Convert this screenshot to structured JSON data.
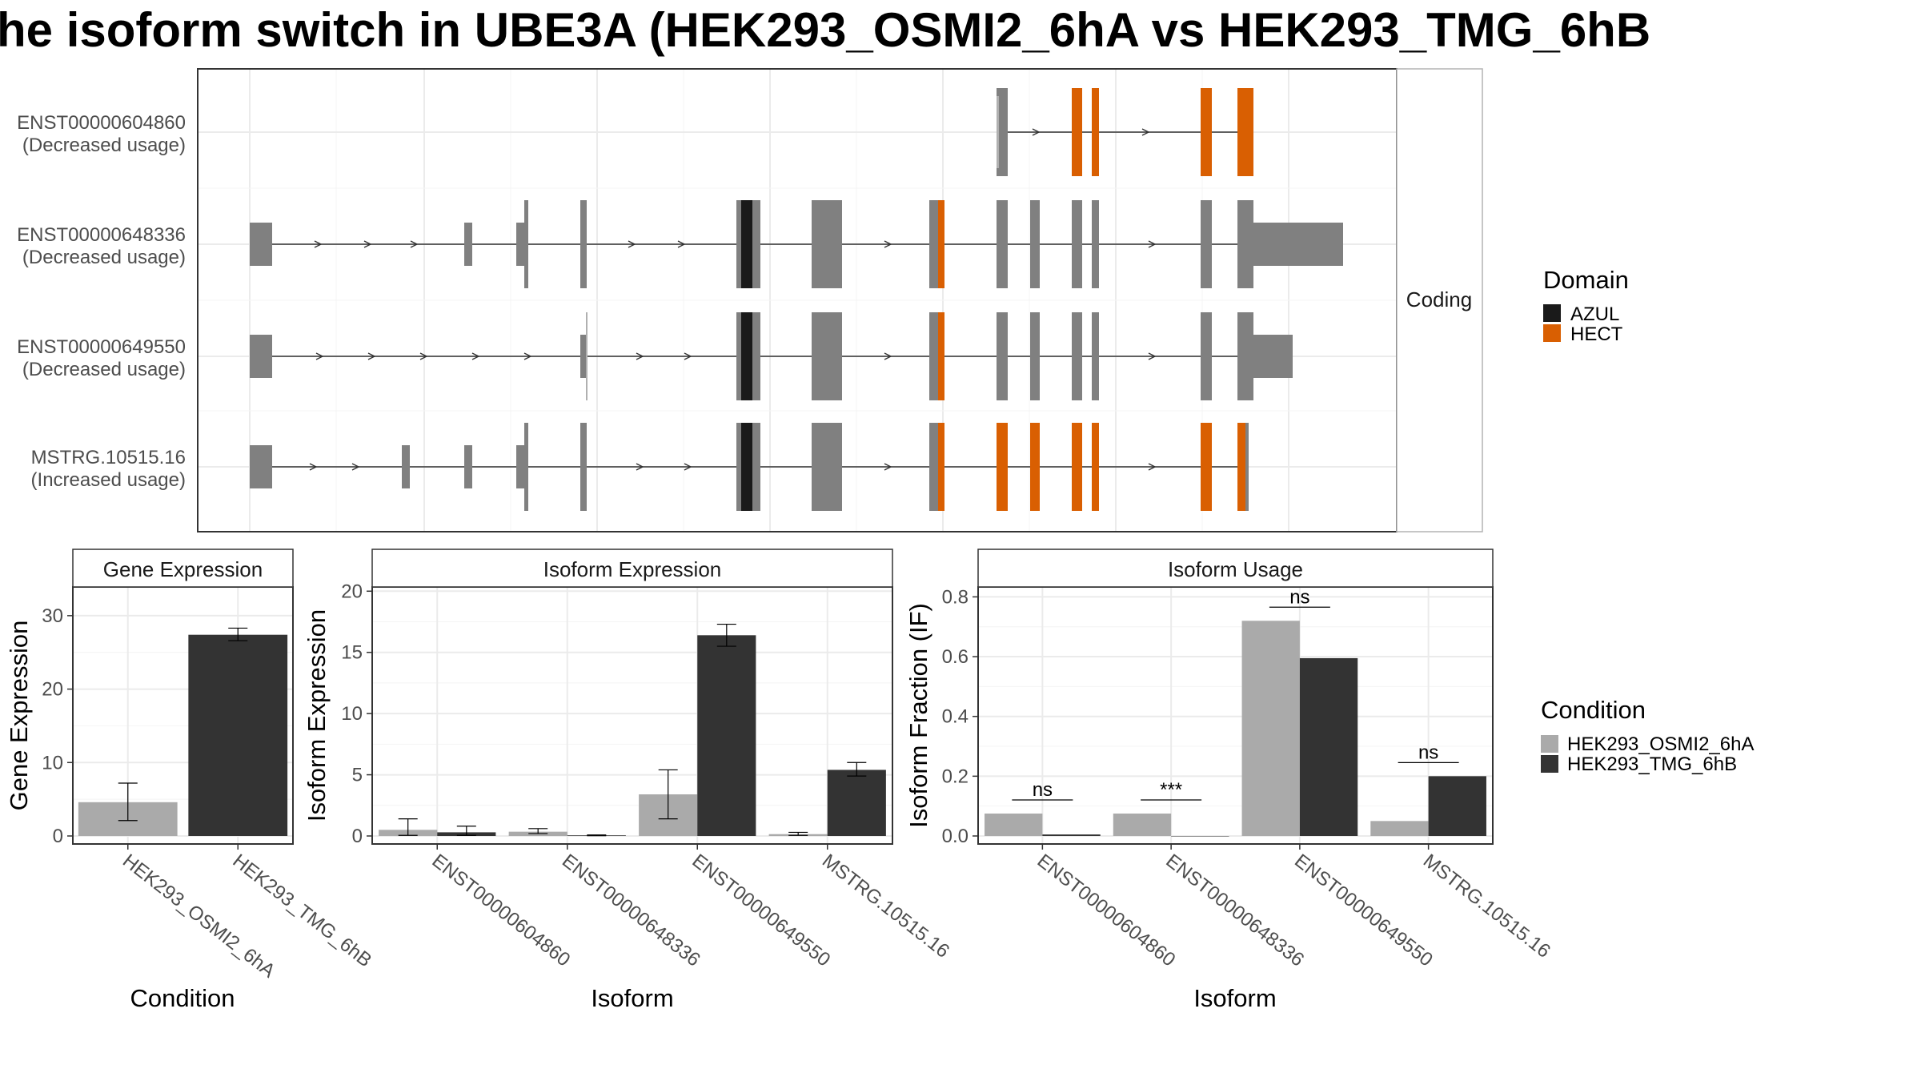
{
  "title": "he isoform switch in UBE3A (HEK293_OSMI2_6hA vs HEK293_TMG_6hB",
  "colors": {
    "gray_exon": "#808080",
    "azul": "#1a1a1a",
    "hect": "#d95f02",
    "cond_a": "#aaaaaa",
    "cond_b": "#333333"
  },
  "transcript_panel": {
    "strip_label": "Coding",
    "isoforms": [
      {
        "id": "ENST00000604860",
        "usage": "(Decreased usage)"
      },
      {
        "id": "ENST00000648336",
        "usage": "(Decreased usage)"
      },
      {
        "id": "ENST00000649550",
        "usage": "(Decreased usage)"
      },
      {
        "id": "MSTRG.10515.16",
        "usage": "(Increased usage)"
      }
    ],
    "domain_legend": {
      "title": "Domain",
      "items": [
        {
          "label": "AZUL",
          "color": "#1a1a1a"
        },
        {
          "label": "HECT",
          "color": "#d95f02"
        }
      ]
    }
  },
  "condition_legend": {
    "title": "Condition",
    "items": [
      {
        "label": "HEK293_OSMI2_6hA",
        "color": "#aaaaaa"
      },
      {
        "label": "HEK293_TMG_6hB",
        "color": "#333333"
      }
    ]
  },
  "chart_data": [
    {
      "type": "bar",
      "title": "Gene Expression",
      "xlabel": "Condition",
      "ylabel": "Gene Expression",
      "categories": [
        "HEK293_OSMI2_6hA",
        "HEK293_TMG_6hB"
      ],
      "values": [
        4.6,
        27.4
      ],
      "error_low": [
        2.1,
        26.6
      ],
      "error_high": [
        7.2,
        28.3
      ],
      "ylim": [
        0,
        35
      ],
      "yticks": [
        0,
        10,
        20,
        30
      ]
    },
    {
      "type": "bar",
      "title": "Isoform Expression",
      "xlabel": "Isoform",
      "ylabel": "Isoform Expression",
      "categories": [
        "ENST00000604860",
        "ENST00000648336",
        "ENST00000649550",
        "MSTRG.10515.16"
      ],
      "series": [
        {
          "name": "HEK293_OSMI2_6hA",
          "values": [
            0.5,
            0.35,
            3.4,
            0.15
          ],
          "error_low": [
            0.05,
            0.2,
            1.4,
            0.05
          ],
          "error_high": [
            1.4,
            0.6,
            5.4,
            0.3
          ]
        },
        {
          "name": "HEK293_TMG_6hB",
          "values": [
            0.3,
            0.05,
            16.4,
            5.4
          ],
          "error_low": [
            0.05,
            0.02,
            15.5,
            4.9
          ],
          "error_high": [
            0.8,
            0.08,
            17.3,
            6.0
          ]
        }
      ],
      "ylim": [
        0,
        21
      ],
      "yticks": [
        0,
        5,
        10,
        15,
        20
      ]
    },
    {
      "type": "bar",
      "title": "Isoform Usage",
      "xlabel": "Isoform",
      "ylabel": "Isoform Fraction (IF)",
      "categories": [
        "ENST00000604860",
        "ENST00000648336",
        "ENST00000649550",
        "MSTRG.10515.16"
      ],
      "series": [
        {
          "name": "HEK293_OSMI2_6hA",
          "values": [
            0.075,
            0.075,
            0.72,
            0.05
          ]
        },
        {
          "name": "HEK293_TMG_6hB",
          "values": [
            0.005,
            0.0,
            0.595,
            0.2
          ]
        }
      ],
      "significance": [
        "ns",
        "***",
        "ns",
        "ns"
      ],
      "ylim": [
        0,
        0.86
      ],
      "yticks": [
        "0.0",
        "0.2",
        "0.4",
        "0.6",
        "0.8"
      ]
    }
  ]
}
